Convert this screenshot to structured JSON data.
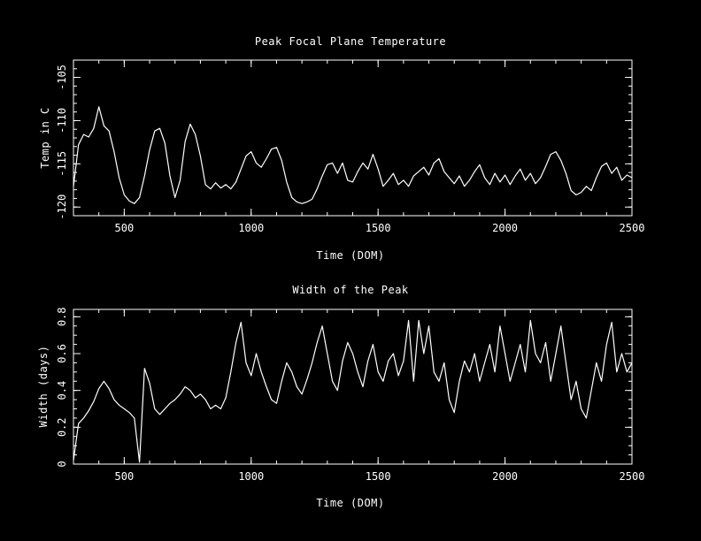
{
  "figure": {
    "background": "#000000",
    "line_color": "#ffffff",
    "text_color": "#ffffff"
  },
  "chart_data": [
    {
      "type": "line",
      "title": "Peak Focal Plane Temperature",
      "xlabel": "Time (DOM)",
      "ylabel": "Temp in C",
      "xlim": [
        300,
        2500
      ],
      "ylim": [
        -121,
        -103
      ],
      "xticks": [
        500,
        1000,
        1500,
        2000,
        2500
      ],
      "xtick_labels": [
        "500",
        "1000",
        "1500",
        "2000",
        "2500"
      ],
      "yticks": [
        -120,
        -115,
        -110,
        -105
      ],
      "ytick_labels": [
        "-120",
        "-115",
        "-110",
        "-105"
      ],
      "x_minor_step": 100,
      "y_minor_step": 1,
      "legend": "none",
      "grid": false,
      "x": [
        300,
        320,
        340,
        360,
        380,
        400,
        420,
        440,
        460,
        480,
        500,
        520,
        540,
        560,
        580,
        600,
        620,
        640,
        660,
        680,
        700,
        720,
        740,
        760,
        780,
        800,
        820,
        840,
        860,
        880,
        900,
        920,
        940,
        960,
        980,
        1000,
        1020,
        1040,
        1060,
        1080,
        1100,
        1120,
        1140,
        1160,
        1180,
        1200,
        1220,
        1240,
        1260,
        1280,
        1300,
        1320,
        1340,
        1360,
        1380,
        1400,
        1420,
        1440,
        1460,
        1480,
        1500,
        1520,
        1540,
        1560,
        1580,
        1600,
        1620,
        1640,
        1660,
        1680,
        1700,
        1720,
        1740,
        1760,
        1780,
        1800,
        1820,
        1840,
        1860,
        1880,
        1900,
        1920,
        1940,
        1960,
        1980,
        2000,
        2020,
        2040,
        2060,
        2080,
        2100,
        2120,
        2140,
        2160,
        2180,
        2200,
        2220,
        2240,
        2260,
        2280,
        2300,
        2320,
        2340,
        2360,
        2380,
        2400,
        2420,
        2440,
        2460,
        2480,
        2500
      ],
      "y": [
        -117.6,
        -112.8,
        -111.6,
        -111.9,
        -110.9,
        -108.4,
        -110.6,
        -111.2,
        -113.6,
        -116.6,
        -118.6,
        -119.3,
        -119.6,
        -118.9,
        -116.4,
        -113.4,
        -111.2,
        -110.9,
        -112.6,
        -116.4,
        -118.9,
        -116.9,
        -112.4,
        -110.4,
        -111.6,
        -114.1,
        -117.4,
        -117.9,
        -117.2,
        -117.8,
        -117.4,
        -117.9,
        -117.1,
        -115.6,
        -114.1,
        -113.6,
        -114.9,
        -115.4,
        -114.4,
        -113.3,
        -113.1,
        -114.6,
        -117.1,
        -118.9,
        -119.4,
        -119.6,
        -119.4,
        -119.1,
        -117.9,
        -116.4,
        -115.1,
        -114.9,
        -116.1,
        -114.9,
        -116.9,
        -117.1,
        -115.9,
        -114.9,
        -115.6,
        -113.9,
        -115.6,
        -117.6,
        -116.9,
        -116.1,
        -117.4,
        -116.9,
        -117.6,
        -116.4,
        -115.9,
        -115.4,
        -116.3,
        -114.9,
        -114.4,
        -115.9,
        -116.6,
        -117.3,
        -116.4,
        -117.6,
        -116.9,
        -115.9,
        -115.1,
        -116.6,
        -117.4,
        -116.1,
        -117.1,
        -116.3,
        -117.4,
        -116.4,
        -115.6,
        -116.9,
        -116.1,
        -117.3,
        -116.6,
        -115.3,
        -113.9,
        -113.6,
        -114.6,
        -116.1,
        -118.1,
        -118.6,
        -118.3,
        -117.6,
        -118.1,
        -116.6,
        -115.3,
        -114.9,
        -116.1,
        -115.4,
        -116.9,
        -116.3,
        -116.6
      ]
    },
    {
      "type": "line",
      "title": "Width of the Peak",
      "xlabel": "Time (DOM)",
      "ylabel": "Width (days)",
      "xlim": [
        300,
        2500
      ],
      "ylim": [
        0,
        0.84
      ],
      "xticks": [
        500,
        1000,
        1500,
        2000,
        2500
      ],
      "xtick_labels": [
        "500",
        "1000",
        "1500",
        "2000",
        "2500"
      ],
      "yticks": [
        0,
        0.2,
        0.4,
        0.6,
        0.8
      ],
      "ytick_labels": [
        "0",
        "0.2",
        "0.4",
        "0.6",
        "0.8"
      ],
      "x_minor_step": 100,
      "y_minor_step": 0.05,
      "legend": "none",
      "grid": false,
      "x": [
        300,
        320,
        340,
        360,
        380,
        400,
        420,
        440,
        460,
        480,
        500,
        520,
        540,
        560,
        580,
        600,
        620,
        640,
        660,
        680,
        700,
        720,
        740,
        760,
        780,
        800,
        820,
        840,
        860,
        880,
        900,
        920,
        940,
        960,
        980,
        1000,
        1020,
        1040,
        1060,
        1080,
        1100,
        1120,
        1140,
        1160,
        1180,
        1200,
        1220,
        1240,
        1260,
        1280,
        1300,
        1320,
        1340,
        1360,
        1380,
        1400,
        1420,
        1440,
        1460,
        1480,
        1500,
        1520,
        1540,
        1560,
        1580,
        1600,
        1620,
        1640,
        1660,
        1680,
        1700,
        1720,
        1740,
        1760,
        1780,
        1800,
        1820,
        1840,
        1860,
        1880,
        1900,
        1920,
        1940,
        1960,
        1980,
        2000,
        2020,
        2040,
        2060,
        2080,
        2100,
        2120,
        2140,
        2160,
        2180,
        2200,
        2220,
        2240,
        2260,
        2280,
        2300,
        2320,
        2340,
        2360,
        2380,
        2400,
        2420,
        2440,
        2460,
        2480,
        2500
      ],
      "y": [
        0.02,
        0.22,
        0.25,
        0.29,
        0.34,
        0.41,
        0.45,
        0.41,
        0.35,
        0.32,
        0.3,
        0.28,
        0.25,
        0.01,
        0.52,
        0.44,
        0.3,
        0.27,
        0.3,
        0.33,
        0.35,
        0.38,
        0.42,
        0.4,
        0.36,
        0.38,
        0.35,
        0.3,
        0.32,
        0.3,
        0.36,
        0.5,
        0.66,
        0.77,
        0.55,
        0.48,
        0.6,
        0.5,
        0.42,
        0.35,
        0.33,
        0.45,
        0.55,
        0.5,
        0.42,
        0.38,
        0.46,
        0.55,
        0.66,
        0.75,
        0.6,
        0.45,
        0.4,
        0.56,
        0.66,
        0.6,
        0.5,
        0.42,
        0.56,
        0.65,
        0.5,
        0.45,
        0.56,
        0.6,
        0.48,
        0.56,
        0.78,
        0.45,
        0.78,
        0.6,
        0.75,
        0.5,
        0.45,
        0.55,
        0.35,
        0.28,
        0.45,
        0.56,
        0.5,
        0.6,
        0.45,
        0.55,
        0.65,
        0.5,
        0.75,
        0.6,
        0.45,
        0.55,
        0.65,
        0.5,
        0.78,
        0.6,
        0.55,
        0.66,
        0.45,
        0.6,
        0.75,
        0.55,
        0.35,
        0.45,
        0.3,
        0.25,
        0.4,
        0.55,
        0.45,
        0.65,
        0.77,
        0.5,
        0.6,
        0.5,
        0.55
      ]
    }
  ]
}
